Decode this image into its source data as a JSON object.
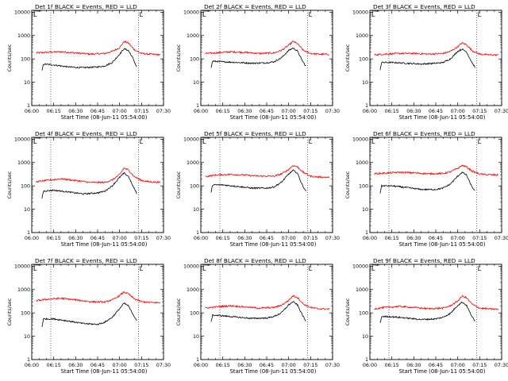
{
  "chart_data": [
    {
      "type": "line",
      "title": "Det 1f BLACK = Events, RED = LLD",
      "xlabel": "Start Time (08-Jun-11 05:54:00)",
      "ylabel": "Counts/sec",
      "x_ticks": [
        "06:00",
        "06:15",
        "06:30",
        "06:45",
        "07:00",
        "07:15",
        "07:30"
      ],
      "y_ticks": [
        "1",
        "10",
        "100",
        "1000",
        "10000"
      ],
      "yscale": "log",
      "ylim": [
        1,
        12000
      ],
      "xlim": [
        "06:00",
        "07:30"
      ],
      "grid": false,
      "marker_label": "L",
      "vlines": [
        "06:13",
        "07:13"
      ],
      "series": [
        {
          "name": "LLD",
          "color": "#ff0000",
          "x": [
            "06:03",
            "06:10",
            "06:20",
            "06:30",
            "06:40",
            "06:50",
            "06:55",
            "07:00",
            "07:03",
            "07:06",
            "07:10",
            "07:15",
            "07:20",
            "07:28"
          ],
          "y": [
            180,
            190,
            200,
            180,
            160,
            170,
            210,
            300,
            550,
            480,
            250,
            170,
            160,
            150
          ]
        },
        {
          "name": "Events",
          "color": "#000000",
          "x": [
            "06:07",
            "06:08",
            "06:15",
            "06:25",
            "06:35",
            "06:45",
            "06:50",
            "06:55",
            "07:00",
            "07:03",
            "07:06",
            "07:09",
            "07:12"
          ],
          "y": [
            30,
            60,
            55,
            45,
            42,
            45,
            50,
            70,
            160,
            270,
            230,
            110,
            40
          ]
        }
      ]
    },
    {
      "type": "line",
      "title": "Det 2f BLACK = Events, RED = LLD",
      "xlabel": "Start Time (08-Jun-11 05:54:00)",
      "ylabel": "Counts/sec",
      "x_ticks": [
        "06:00",
        "06:15",
        "06:30",
        "06:45",
        "07:00",
        "07:15",
        "07:30"
      ],
      "y_ticks": [
        "1",
        "10",
        "100",
        "1000",
        "10000"
      ],
      "yscale": "log",
      "ylim": [
        1,
        12000
      ],
      "xlim": [
        "06:00",
        "07:30"
      ],
      "grid": false,
      "marker_label": "L",
      "vlines": [
        "06:13",
        "07:13"
      ],
      "series": [
        {
          "name": "LLD",
          "color": "#ff0000",
          "x": [
            "06:03",
            "06:10",
            "06:20",
            "06:30",
            "06:40",
            "06:50",
            "06:55",
            "07:00",
            "07:03",
            "07:06",
            "07:10",
            "07:15",
            "07:20",
            "07:28"
          ],
          "y": [
            170,
            180,
            200,
            190,
            170,
            180,
            230,
            380,
            560,
            450,
            230,
            170,
            160,
            155
          ]
        },
        {
          "name": "Events",
          "color": "#000000",
          "x": [
            "06:07",
            "06:08",
            "06:15",
            "06:25",
            "06:35",
            "06:45",
            "06:50",
            "06:55",
            "07:00",
            "07:03",
            "07:06",
            "07:09",
            "07:12"
          ],
          "y": [
            40,
            80,
            75,
            70,
            65,
            68,
            75,
            110,
            230,
            290,
            220,
            90,
            45
          ]
        }
      ]
    },
    {
      "type": "line",
      "title": "Det 3f BLACK = Events, RED = LLD",
      "xlabel": "Start Time (08-Jun-11 05:54:00)",
      "ylabel": "Counts/sec",
      "x_ticks": [
        "06:00",
        "06:15",
        "06:30",
        "06:45",
        "07:00",
        "07:15",
        "07:30"
      ],
      "y_ticks": [
        "1",
        "10",
        "100",
        "1000",
        "10000"
      ],
      "yscale": "log",
      "ylim": [
        1,
        12000
      ],
      "xlim": [
        "06:00",
        "07:30"
      ],
      "grid": false,
      "marker_label": "L",
      "vlines": [
        "06:13",
        "07:13"
      ],
      "series": [
        {
          "name": "LLD",
          "color": "#ff0000",
          "x": [
            "06:03",
            "06:10",
            "06:20",
            "06:30",
            "06:40",
            "06:50",
            "06:55",
            "07:00",
            "07:03",
            "07:06",
            "07:10",
            "07:15",
            "07:20",
            "07:28"
          ],
          "y": [
            150,
            160,
            170,
            170,
            160,
            170,
            210,
            330,
            480,
            400,
            220,
            160,
            150,
            145
          ]
        },
        {
          "name": "Events",
          "color": "#000000",
          "x": [
            "06:07",
            "06:08",
            "06:15",
            "06:25",
            "06:35",
            "06:45",
            "06:50",
            "06:55",
            "07:00",
            "07:03",
            "07:06",
            "07:09",
            "07:12"
          ],
          "y": [
            35,
            70,
            70,
            65,
            60,
            65,
            70,
            100,
            210,
            260,
            200,
            85,
            40
          ]
        }
      ]
    },
    {
      "type": "line",
      "title": "Det 4f BLACK = Events, RED = LLD",
      "xlabel": "Start Time (08-Jun-11 05:54:00)",
      "ylabel": "Counts/sec",
      "x_ticks": [
        "06:00",
        "06:15",
        "06:30",
        "06:45",
        "07:00",
        "07:15",
        "07:30"
      ],
      "y_ticks": [
        "1",
        "10",
        "100",
        "1000",
        "10000"
      ],
      "yscale": "log",
      "ylim": [
        1,
        12000
      ],
      "xlim": [
        "06:00",
        "07:30"
      ],
      "grid": false,
      "marker_label": "L",
      "vlines": [
        "06:13",
        "07:13"
      ],
      "series": [
        {
          "name": "LLD",
          "color": "#ff0000",
          "x": [
            "06:03",
            "06:10",
            "06:20",
            "06:30",
            "06:40",
            "06:50",
            "06:55",
            "07:00",
            "07:03",
            "07:06",
            "07:10",
            "07:15",
            "07:20",
            "07:28"
          ],
          "y": [
            150,
            170,
            200,
            170,
            140,
            140,
            180,
            300,
            580,
            480,
            250,
            170,
            150,
            140
          ]
        },
        {
          "name": "Events",
          "color": "#000000",
          "x": [
            "06:07",
            "06:08",
            "06:15",
            "06:25",
            "06:35",
            "06:45",
            "06:50",
            "06:55",
            "07:00",
            "07:03",
            "07:06",
            "07:09",
            "07:12"
          ],
          "y": [
            30,
            60,
            65,
            55,
            45,
            50,
            60,
            100,
            230,
            350,
            260,
            100,
            45
          ]
        }
      ]
    },
    {
      "type": "line",
      "title": "Det 5f BLACK = Events, RED = LLD",
      "xlabel": "Start Time (08-Jun-11 05:54:00)",
      "ylabel": "Counts/sec",
      "x_ticks": [
        "06:00",
        "06:15",
        "06:30",
        "06:45",
        "07:00",
        "07:15",
        "07:30"
      ],
      "y_ticks": [
        "1",
        "10",
        "100",
        "1000",
        "10000"
      ],
      "yscale": "log",
      "ylim": [
        1,
        12000
      ],
      "xlim": [
        "06:00",
        "07:30"
      ],
      "grid": false,
      "marker_label": "L",
      "vlines": [
        "06:13",
        "07:13"
      ],
      "series": [
        {
          "name": "LLD",
          "color": "#ff0000",
          "x": [
            "06:03",
            "06:10",
            "06:20",
            "06:30",
            "06:40",
            "06:50",
            "06:55",
            "07:00",
            "07:03",
            "07:06",
            "07:10",
            "07:15",
            "07:20",
            "07:28"
          ],
          "y": [
            250,
            290,
            310,
            290,
            260,
            260,
            320,
            500,
            750,
            650,
            380,
            260,
            240,
            230
          ]
        },
        {
          "name": "Events",
          "color": "#000000",
          "x": [
            "06:07",
            "06:08",
            "06:15",
            "06:25",
            "06:35",
            "06:45",
            "06:50",
            "06:55",
            "07:00",
            "07:03",
            "07:06",
            "07:09",
            "07:12"
          ],
          "y": [
            50,
            110,
            110,
            95,
            80,
            80,
            90,
            140,
            320,
            460,
            350,
            120,
            55
          ]
        }
      ]
    },
    {
      "type": "line",
      "title": "Det 6f BLACK = Events, RED = LLD",
      "xlabel": "Start Time (08-Jun-11 05:54:00)",
      "ylabel": "Counts/sec",
      "x_ticks": [
        "06:00",
        "06:15",
        "06:30",
        "06:45",
        "07:00",
        "07:15",
        "07:30"
      ],
      "y_ticks": [
        "1",
        "10",
        "100",
        "1000",
        "10000"
      ],
      "yscale": "log",
      "ylim": [
        1,
        12000
      ],
      "xlim": [
        "06:00",
        "07:30"
      ],
      "grid": false,
      "marker_label": "L",
      "vlines": [
        "06:13",
        "07:13"
      ],
      "series": [
        {
          "name": "LLD",
          "color": "#ff0000",
          "x": [
            "06:03",
            "06:10",
            "06:20",
            "06:30",
            "06:40",
            "06:50",
            "06:55",
            "07:00",
            "07:03",
            "07:06",
            "07:10",
            "07:15",
            "07:20",
            "07:28"
          ],
          "y": [
            330,
            350,
            380,
            360,
            330,
            340,
            400,
            560,
            750,
            650,
            420,
            320,
            300,
            290
          ]
        },
        {
          "name": "Events",
          "color": "#000000",
          "x": [
            "06:07",
            "06:08",
            "06:15",
            "06:25",
            "06:35",
            "06:45",
            "06:50",
            "06:55",
            "07:00",
            "07:03",
            "07:06",
            "07:09",
            "07:12"
          ],
          "y": [
            50,
            100,
            100,
            85,
            70,
            70,
            80,
            120,
            260,
            380,
            290,
            110,
            55
          ]
        }
      ]
    },
    {
      "type": "line",
      "title": "Det 7f BLACK = Events, RED = LLD",
      "xlabel": "Start Time (08-Jun-11 05:54:00)",
      "ylabel": "Counts/sec",
      "x_ticks": [
        "06:00",
        "06:15",
        "06:30",
        "06:45",
        "07:00",
        "07:15",
        "07:30"
      ],
      "y_ticks": [
        "1",
        "10",
        "100",
        "1000",
        "10000"
      ],
      "yscale": "log",
      "ylim": [
        1,
        12000
      ],
      "xlim": [
        "06:00",
        "07:30"
      ],
      "grid": false,
      "marker_label": "L",
      "vlines": [
        "06:13",
        "07:13"
      ],
      "series": [
        {
          "name": "LLD",
          "color": "#ff0000",
          "x": [
            "06:03",
            "06:10",
            "06:20",
            "06:30",
            "06:40",
            "06:50",
            "06:55",
            "07:00",
            "07:03",
            "07:06",
            "07:10",
            "07:15",
            "07:20",
            "07:28"
          ],
          "y": [
            330,
            380,
            420,
            360,
            300,
            290,
            360,
            550,
            780,
            650,
            400,
            300,
            280,
            270
          ]
        },
        {
          "name": "Events",
          "color": "#000000",
          "x": [
            "06:07",
            "06:08",
            "06:15",
            "06:25",
            "06:35",
            "06:45",
            "06:50",
            "06:55",
            "07:00",
            "07:03",
            "07:06",
            "07:09",
            "07:12"
          ],
          "y": [
            25,
            55,
            55,
            45,
            35,
            32,
            40,
            65,
            150,
            260,
            200,
            90,
            45
          ]
        }
      ]
    },
    {
      "type": "line",
      "title": "Det 8f BLACK = Events, RED = LLD",
      "xlabel": "Start Time (08-Jun-11 05:54:00)",
      "ylabel": "Counts/sec",
      "x_ticks": [
        "06:00",
        "06:15",
        "06:30",
        "06:45",
        "07:00",
        "07:15",
        "07:30"
      ],
      "y_ticks": [
        "1",
        "10",
        "100",
        "1000",
        "10000"
      ],
      "yscale": "log",
      "ylim": [
        1,
        12000
      ],
      "xlim": [
        "06:00",
        "07:30"
      ],
      "grid": false,
      "marker_label": "L",
      "vlines": [
        "06:13",
        "07:13"
      ],
      "series": [
        {
          "name": "LLD",
          "color": "#ff0000",
          "x": [
            "06:03",
            "06:10",
            "06:20",
            "06:30",
            "06:40",
            "06:50",
            "06:55",
            "07:00",
            "07:03",
            "07:06",
            "07:10",
            "07:15",
            "07:20",
            "07:28"
          ],
          "y": [
            160,
            180,
            200,
            180,
            160,
            170,
            210,
            340,
            540,
            460,
            240,
            170,
            150,
            145
          ]
        },
        {
          "name": "Events",
          "color": "#000000",
          "x": [
            "06:07",
            "06:08",
            "06:15",
            "06:25",
            "06:35",
            "06:45",
            "06:50",
            "06:55",
            "07:00",
            "07:03",
            "07:06",
            "07:09",
            "07:12"
          ],
          "y": [
            40,
            80,
            75,
            65,
            58,
            60,
            70,
            100,
            220,
            300,
            220,
            90,
            40
          ]
        }
      ]
    },
    {
      "type": "line",
      "title": "Det 9f BLACK = Events, RED = LLD",
      "xlabel": "Start Time (08-Jun-11 05:54:00)",
      "ylabel": "Counts/sec",
      "x_ticks": [
        "06:00",
        "06:15",
        "06:30",
        "06:45",
        "07:00",
        "07:15",
        "07:30"
      ],
      "y_ticks": [
        "1",
        "10",
        "100",
        "1000",
        "10000"
      ],
      "yscale": "log",
      "ylim": [
        1,
        12000
      ],
      "xlim": [
        "06:00",
        "07:30"
      ],
      "grid": false,
      "marker_label": "L",
      "vlines": [
        "06:13",
        "07:13"
      ],
      "series": [
        {
          "name": "LLD",
          "color": "#ff0000",
          "x": [
            "06:03",
            "06:10",
            "06:20",
            "06:30",
            "06:40",
            "06:50",
            "06:55",
            "07:00",
            "07:03",
            "07:06",
            "07:10",
            "07:15",
            "07:20",
            "07:28"
          ],
          "y": [
            150,
            170,
            190,
            170,
            150,
            160,
            200,
            320,
            520,
            440,
            230,
            160,
            150,
            140
          ]
        },
        {
          "name": "Events",
          "color": "#000000",
          "x": [
            "06:07",
            "06:08",
            "06:15",
            "06:25",
            "06:35",
            "06:45",
            "06:50",
            "06:55",
            "07:00",
            "07:03",
            "07:06",
            "07:09",
            "07:12"
          ],
          "y": [
            35,
            70,
            68,
            60,
            52,
            55,
            65,
            95,
            210,
            290,
            210,
            85,
            40
          ]
        }
      ]
    }
  ]
}
